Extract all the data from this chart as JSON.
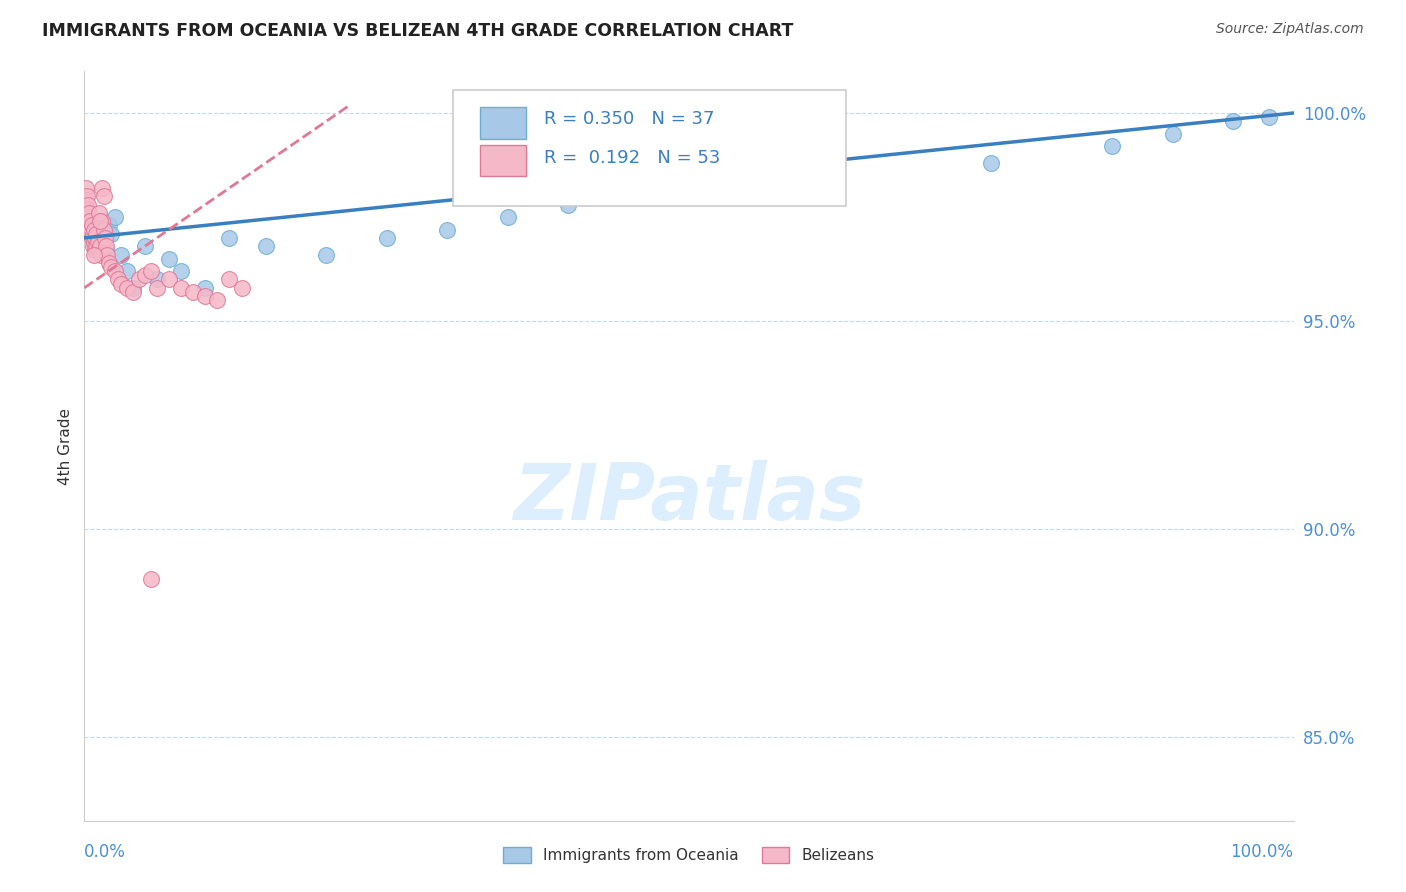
{
  "title": "IMMIGRANTS FROM OCEANIA VS BELIZEAN 4TH GRADE CORRELATION CHART",
  "source": "Source: ZipAtlas.com",
  "ylabel": "4th Grade",
  "y_ticks": [
    0.85,
    0.9,
    0.95,
    1.0
  ],
  "y_tick_labels": [
    "85.0%",
    "90.0%",
    "95.0%",
    "100.0%"
  ],
  "xlim": [
    0.0,
    1.0
  ],
  "ylim": [
    0.83,
    1.01
  ],
  "R_blue": 0.35,
  "N_blue": 37,
  "R_pink": 0.192,
  "N_pink": 53,
  "blue_scatter_color": "#a8c8e8",
  "blue_edge_color": "#6aaed6",
  "pink_scatter_color": "#f5b8c8",
  "pink_edge_color": "#e07898",
  "blue_line_color": "#3a7fc1",
  "pink_line_color": "#e07898",
  "tick_color": "#4a90d9",
  "grid_color": "#c8d8ec",
  "title_color": "#222222",
  "source_color": "#555555",
  "watermark_color": "#ddeeff",
  "legend_text_color": "#3a7fc1",
  "legend_n_color": "#333333",
  "blue_x": [
    0.001,
    0.002,
    0.003,
    0.004,
    0.005,
    0.006,
    0.007,
    0.008,
    0.009,
    0.01,
    0.012,
    0.015,
    0.018,
    0.02,
    0.022,
    0.025,
    0.03,
    0.035,
    0.04,
    0.05,
    0.06,
    0.07,
    0.08,
    0.1,
    0.12,
    0.15,
    0.2,
    0.25,
    0.3,
    0.35,
    0.4,
    0.6,
    0.75,
    0.85,
    0.9,
    0.95,
    0.98
  ],
  "blue_y": [
    0.974,
    0.976,
    0.975,
    0.973,
    0.972,
    0.971,
    0.974,
    0.97,
    0.969,
    0.972,
    0.97,
    0.968,
    0.967,
    0.973,
    0.971,
    0.975,
    0.966,
    0.962,
    0.958,
    0.968,
    0.96,
    0.965,
    0.962,
    0.958,
    0.97,
    0.968,
    0.966,
    0.97,
    0.972,
    0.975,
    0.978,
    0.982,
    0.988,
    0.992,
    0.995,
    0.998,
    0.999
  ],
  "pink_x": [
    0.001,
    0.001,
    0.002,
    0.002,
    0.003,
    0.003,
    0.004,
    0.004,
    0.005,
    0.005,
    0.006,
    0.006,
    0.007,
    0.007,
    0.008,
    0.008,
    0.009,
    0.009,
    0.01,
    0.01,
    0.011,
    0.012,
    0.013,
    0.014,
    0.015,
    0.016,
    0.017,
    0.018,
    0.019,
    0.02,
    0.022,
    0.025,
    0.028,
    0.03,
    0.035,
    0.04,
    0.045,
    0.05,
    0.055,
    0.06,
    0.07,
    0.08,
    0.09,
    0.1,
    0.11,
    0.12,
    0.13,
    0.015,
    0.016,
    0.012,
    0.013,
    0.055,
    0.008
  ],
  "pink_y": [
    0.982,
    0.979,
    0.98,
    0.977,
    0.978,
    0.975,
    0.976,
    0.973,
    0.974,
    0.972,
    0.973,
    0.97,
    0.971,
    0.968,
    0.972,
    0.969,
    0.97,
    0.967,
    0.971,
    0.968,
    0.969,
    0.967,
    0.968,
    0.966,
    0.974,
    0.972,
    0.97,
    0.968,
    0.966,
    0.964,
    0.963,
    0.962,
    0.96,
    0.959,
    0.958,
    0.957,
    0.96,
    0.961,
    0.962,
    0.958,
    0.96,
    0.958,
    0.957,
    0.956,
    0.955,
    0.96,
    0.958,
    0.982,
    0.98,
    0.976,
    0.974,
    0.888,
    0.966
  ]
}
